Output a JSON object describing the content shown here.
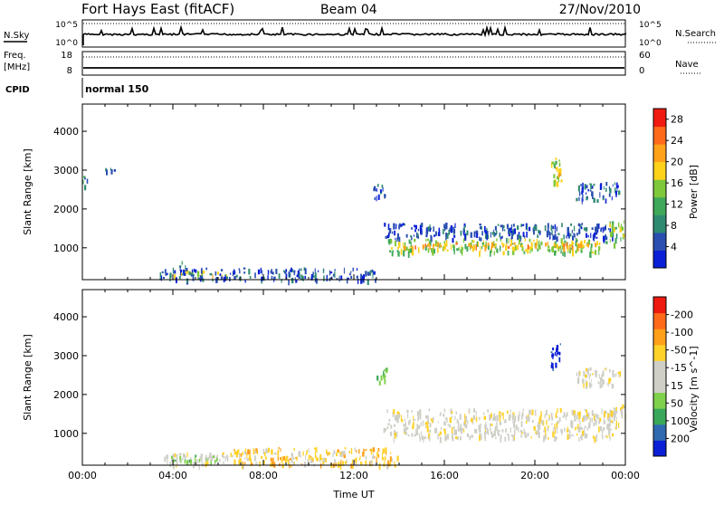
{
  "header": {
    "site": "Fort Hays East (fitACF)",
    "beam": "Beam 04",
    "date": "27/Nov/2010"
  },
  "summary_panels": {
    "nsky_label": "N.Sky",
    "nsky_top": "10^5",
    "nsky_bottom": "10^0",
    "nsearch_label": "N.Search",
    "nsearch_top": "10^5",
    "nsearch_bottom": "10^0",
    "freq_label": "Freq.",
    "freq_unit": "[MHz]",
    "freq_top": "18",
    "freq_bottom": "8",
    "nave_label": "Nave",
    "nave_top": "60",
    "nave_bottom": "0",
    "cpid_label": "CPID",
    "cpid_value": "normal 150"
  },
  "colors": {
    "power_scale": [
      "#0a1fd6",
      "#2a4fb0",
      "#2f8a72",
      "#3fa85a",
      "#7fc83c",
      "#ffd21a",
      "#ffa21a",
      "#ff6a1a",
      "#f01a10"
    ],
    "velocity_scale": [
      "#ee1a10",
      "#ff6a1a",
      "#ffa01a",
      "#ffd22a",
      "#cfcfc8",
      "#cfcfc8",
      "#7fd04a",
      "#3aa85a",
      "#2f6ab0",
      "#0a1fd6"
    ]
  },
  "chart_data": [
    {
      "type": "heatmap",
      "name": "power",
      "ylabel": "Slant Range [km]",
      "colorbar_label": "Power [dB]",
      "colorbar_ticks": [
        "4",
        "8",
        "12",
        "16",
        "20",
        "24",
        "28"
      ],
      "colorbar_range": [
        0,
        30
      ],
      "x_ticks": [
        "00:00",
        "04:00",
        "08:00",
        "12:00",
        "16:00",
        "20:00",
        "00:00"
      ],
      "xlim_hours": [
        0,
        24
      ],
      "y_ticks": [
        "1000",
        "2000",
        "3000",
        "4000"
      ],
      "ylim": [
        180,
        4700
      ],
      "regions": [
        {
          "t": [
            0.0,
            0.2
          ],
          "r": [
            2550,
            2900
          ],
          "level": 2
        },
        {
          "t": [
            1.0,
            1.4
          ],
          "r": [
            3000,
            3080
          ],
          "level": 1
        },
        {
          "t": [
            3.9,
            6.4
          ],
          "r": [
            310,
            440
          ],
          "level": 5
        },
        {
          "t": [
            4.2,
            4.6
          ],
          "r": [
            450,
            720
          ],
          "level": 2
        },
        {
          "t": [
            3.4,
            13.0
          ],
          "r": [
            190,
            500
          ],
          "level": 1
        },
        {
          "t": [
            13.3,
            23.6
          ],
          "r": [
            1250,
            1650
          ],
          "level": 1
        },
        {
          "t": [
            13.5,
            23.5
          ],
          "r": [
            900,
            1250
          ],
          "level": 4
        },
        {
          "t": [
            14.0,
            22.8
          ],
          "r": [
            1020,
            1160
          ],
          "level": 6
        },
        {
          "t": [
            23.2,
            24.0
          ],
          "r": [
            1250,
            1750
          ],
          "level": 4
        },
        {
          "t": [
            20.7,
            21.2
          ],
          "r": [
            2700,
            3350
          ],
          "level": 4
        },
        {
          "t": [
            20.9,
            21.1
          ],
          "r": [
            2900,
            3150
          ],
          "level": 5
        },
        {
          "t": [
            21.8,
            23.8
          ],
          "r": [
            2250,
            2700
          ],
          "level": 1
        },
        {
          "t": [
            12.8,
            13.4
          ],
          "r": [
            2300,
            2700
          ],
          "level": 1
        }
      ]
    },
    {
      "type": "heatmap",
      "name": "velocity",
      "ylabel": "Slant Range [km]",
      "xlabel": "Time UT",
      "colorbar_label": "Velocity [m s^-1]",
      "colorbar_ticks": [
        "-200",
        "-100",
        "-50",
        "-15",
        "15",
        "50",
        "100",
        "200"
      ],
      "colorbar_range": [
        -250,
        250
      ],
      "x_ticks": [
        "00:00",
        "04:00",
        "08:00",
        "12:00",
        "16:00",
        "20:00",
        "00:00"
      ],
      "xlim_hours": [
        0,
        24
      ],
      "y_ticks": [
        "1000",
        "2000",
        "3000",
        "4000"
      ],
      "ylim": [
        180,
        4700
      ],
      "regions": [
        {
          "t": [
            3.6,
            6.6
          ],
          "r": [
            190,
            520
          ],
          "level": 4
        },
        {
          "t": [
            6.5,
            14.0
          ],
          "r": [
            190,
            650
          ],
          "level": 3
        },
        {
          "t": [
            13.3,
            23.6
          ],
          "r": [
            900,
            1650
          ],
          "level": 4
        },
        {
          "t": [
            23.2,
            24.0
          ],
          "r": [
            1250,
            1750
          ],
          "level": 4
        },
        {
          "t": [
            20.7,
            21.2
          ],
          "r": [
            2700,
            3350
          ],
          "level": 9
        },
        {
          "t": [
            21.8,
            23.8
          ],
          "r": [
            2250,
            2700
          ],
          "level": 4
        },
        {
          "t": [
            13.0,
            13.5
          ],
          "r": [
            2300,
            2700
          ],
          "level": 6
        },
        {
          "t": [
            3.9,
            6.2
          ],
          "r": [
            300,
            450
          ],
          "level": 6
        }
      ]
    }
  ]
}
